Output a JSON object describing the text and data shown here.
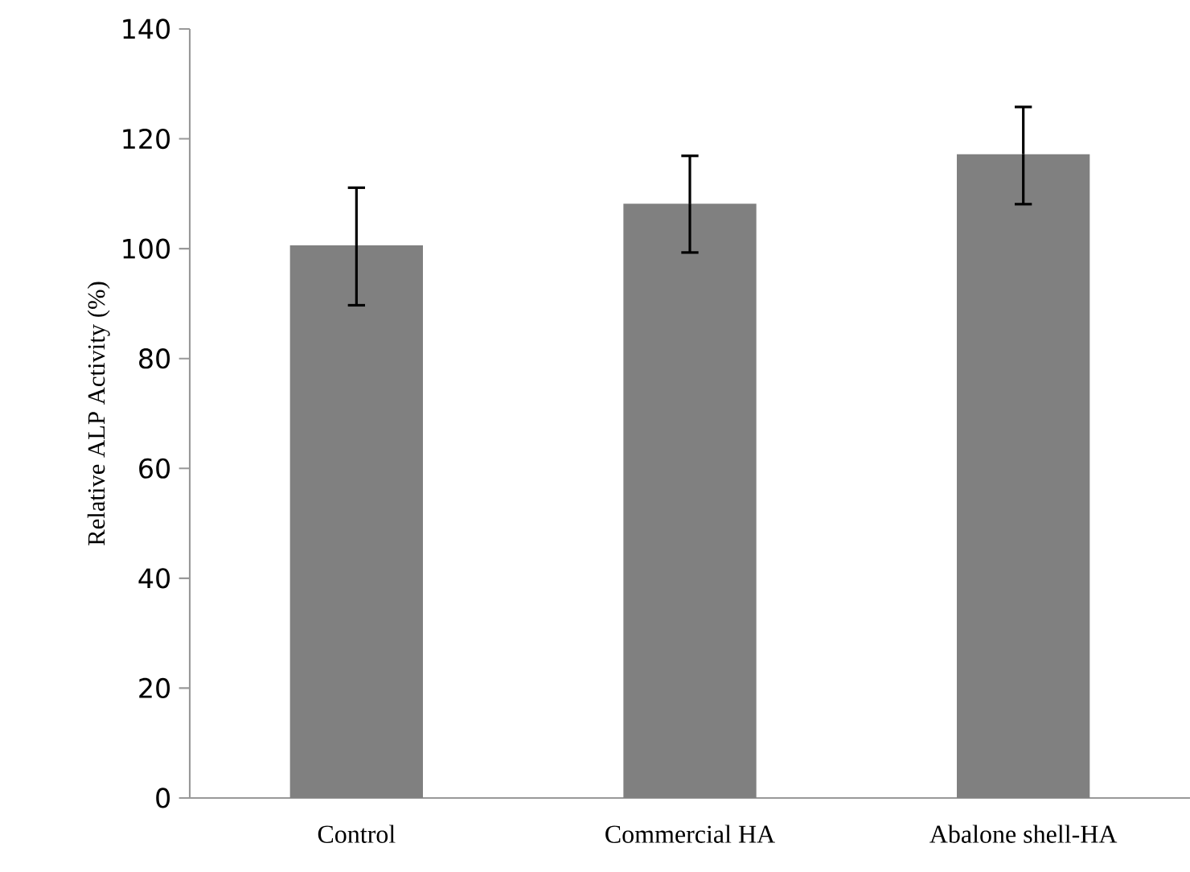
{
  "chart_data": {
    "type": "bar",
    "ylabel": "Relative ALP Activity (%)",
    "categories": [
      "Control",
      "Commercial HA",
      "Abalone shell-HA"
    ],
    "values": [
      100.6,
      108.2,
      117.2
    ],
    "errors": [
      [
        89.7,
        111.1
      ],
      [
        99.3,
        116.9
      ],
      [
        108.1,
        125.8
      ]
    ],
    "color": "#808080",
    "ylim": [
      0,
      140
    ],
    "yticks": [
      0,
      20,
      40,
      60,
      80,
      100,
      120,
      140
    ],
    "grid": false
  }
}
